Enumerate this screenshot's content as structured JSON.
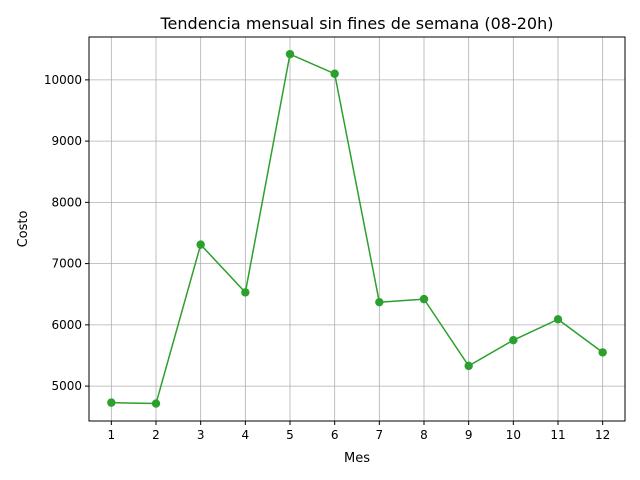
{
  "chart_data": {
    "type": "line",
    "title": "Tendencia mensual sin fines de semana (08-20h)",
    "xlabel": "Mes",
    "ylabel": "Costo",
    "x": [
      1,
      2,
      3,
      4,
      5,
      6,
      7,
      8,
      9,
      10,
      11,
      12
    ],
    "series": [
      {
        "values": [
          4730,
          4715,
          7310,
          6530,
          10420,
          10100,
          6370,
          6420,
          5330,
          5750,
          6090,
          5550
        ],
        "color": "#2ca02c",
        "marker": "circle"
      }
    ],
    "xlim": [
      0.5,
      12.5
    ],
    "ylim": [
      4430,
      10700
    ],
    "xticks": [
      1,
      2,
      3,
      4,
      5,
      6,
      7,
      8,
      9,
      10,
      11,
      12
    ],
    "yticks": [
      5000,
      6000,
      7000,
      8000,
      9000,
      10000
    ],
    "grid": true
  }
}
